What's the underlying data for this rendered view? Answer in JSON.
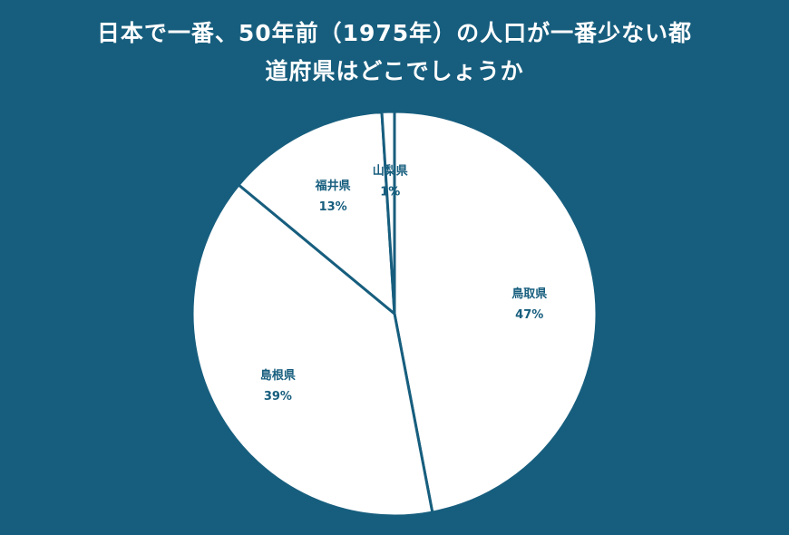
{
  "title_lines": [
    "日本で一番、50年前（1975年）の人口が一番少ない都",
    "道府県はどこでしょうか"
  ],
  "colors": {
    "background": "#175e7e",
    "slice_fill": "#ffffff",
    "slice_stroke": "#175e7e",
    "label": "#175e7e"
  },
  "chart_data": {
    "type": "pie",
    "title": "日本で一番、50年前（1975年）の人口が一番少ない都道府県はどこでしょうか",
    "start": "12 o'clock, clockwise",
    "slices": [
      {
        "label": "鳥取県",
        "value": 47,
        "value_label": "47%"
      },
      {
        "label": "島根県",
        "value": 39,
        "value_label": "39%"
      },
      {
        "label": "福井県",
        "value": 13,
        "value_label": "13%"
      },
      {
        "label": "山梨県",
        "value": 1,
        "value_label": "1%"
      }
    ]
  }
}
